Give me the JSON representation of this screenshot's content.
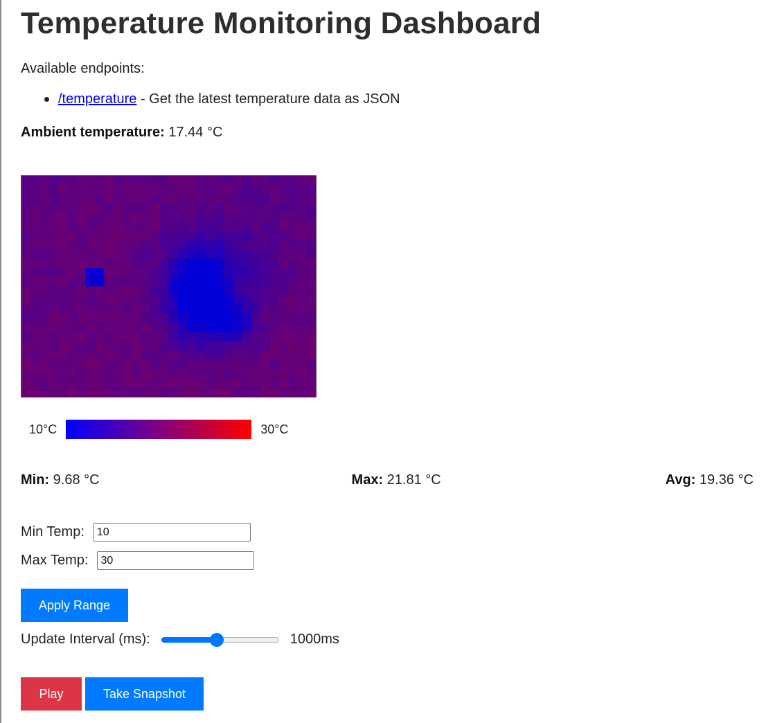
{
  "page": {
    "title": "Temperature Monitoring Dashboard"
  },
  "endpoints": {
    "label": "Available endpoints:",
    "items": [
      {
        "link_text": "/temperature",
        "description": " - Get the latest temperature data as JSON"
      }
    ]
  },
  "ambient": {
    "label": "Ambient temperature:",
    "value": " 17.44 °C"
  },
  "heatmap": {
    "cols": 32,
    "rows": 24,
    "scale_min": 10,
    "scale_max": 30,
    "colors": {
      "cold": "#0000ff",
      "hot": "#ff0000"
    }
  },
  "legend": {
    "min_label": "10°C",
    "max_label": "30°C"
  },
  "stats": {
    "min_label": "Min:",
    "min_value": " 9.68 °C",
    "max_label": "Max:",
    "max_value": " 21.81 °C",
    "avg_label": "Avg:",
    "avg_value": " 19.36 °C"
  },
  "controls": {
    "min_temp_label": "Min Temp:",
    "min_temp_value": "10",
    "max_temp_label": "Max Temp:",
    "max_temp_value": "30",
    "apply_label": "Apply Range",
    "interval_label": "Update Interval (ms):",
    "interval_value_text": "1000ms",
    "interval_fraction": 0.47,
    "play_label": "Play",
    "snapshot_label": "Take Snapshot"
  },
  "colors": {
    "primary": "#007bff",
    "danger": "#dc3545",
    "link": "#0000ee"
  }
}
